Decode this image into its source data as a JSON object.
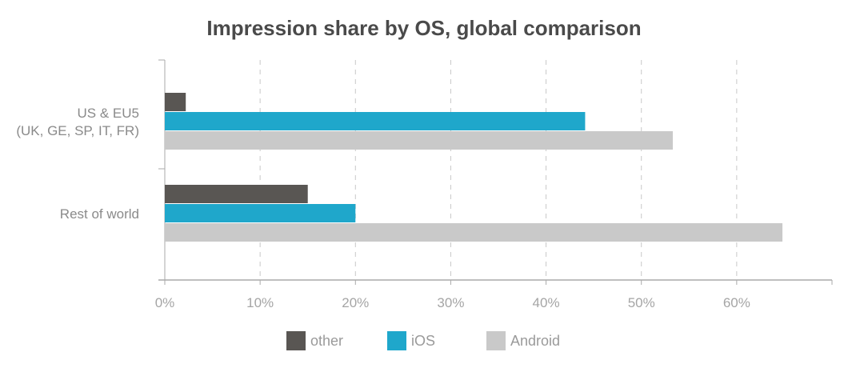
{
  "chart_data": {
    "type": "bar",
    "orientation": "horizontal",
    "title": "Impression share by OS, global comparison",
    "categories": [
      "US & EU5\n(UK, GE, SP, IT, FR)",
      "Rest of world"
    ],
    "series": [
      {
        "name": "other",
        "color": "#595653",
        "values": [
          2.2,
          15.0
        ]
      },
      {
        "name": "iOS",
        "color": "#1fa7cb",
        "values": [
          44.1,
          20.0
        ]
      },
      {
        "name": "Android",
        "color": "#c9c9c9",
        "values": [
          53.3,
          64.8
        ]
      }
    ],
    "xlim": [
      0,
      70
    ],
    "xticks": [
      "0%",
      "10%",
      "20%",
      "30%",
      "40%",
      "50%",
      "60%"
    ],
    "grid": true,
    "legend": "bottom"
  }
}
